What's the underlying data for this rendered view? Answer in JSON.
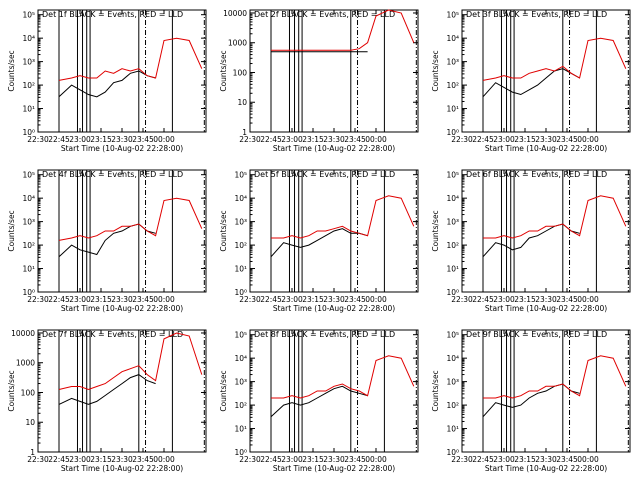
{
  "figure": {
    "xaxis_title": "Start Time (10-Aug-02 22:28:00)",
    "ylabel": "Counts/sec",
    "series_labels": [
      "BLACK = Events",
      "RED = LLD"
    ]
  },
  "chart_data": [
    {
      "type": "line",
      "title": "Det 1f BLACK = Events, RED = LLD",
      "x_ticks": [
        "22:30",
        "22:45",
        "23:00",
        "23:15",
        "23:30",
        "23:45",
        "00:00"
      ],
      "y_ticks": [
        "10⁰",
        "10¹",
        "10²",
        "10³",
        "10⁴",
        "10⁵"
      ],
      "ylim_log10": [
        0,
        5.2
      ],
      "x": [
        22.75,
        22.9,
        23.0,
        23.1,
        23.2,
        23.3,
        23.4,
        23.5,
        23.6,
        23.7,
        23.8,
        23.9,
        24.0,
        24.15,
        24.3,
        24.45
      ],
      "series": [
        {
          "label": "BLACK = Events",
          "color": "#000000",
          "log10_values": [
            1.5,
            2.0,
            1.8,
            1.6,
            1.5,
            1.7,
            2.1,
            2.2,
            2.5,
            2.6,
            2.4,
            2.3,
            null,
            null,
            null,
            null
          ]
        },
        {
          "label": "RED = LLD",
          "color": "#e00000",
          "log10_values": [
            2.2,
            2.3,
            2.4,
            2.3,
            2.3,
            2.6,
            2.5,
            2.7,
            2.6,
            2.7,
            2.4,
            2.3,
            3.9,
            4.0,
            3.9,
            2.7
          ]
        }
      ]
    },
    {
      "type": "line",
      "title": "Det 2f BLACK = Events, RED = LLD",
      "x_ticks": [
        "22:30",
        "22:45",
        "23:00",
        "23:15",
        "23:30",
        "23:45",
        "00:00"
      ],
      "y_ticks": [
        "1",
        "10",
        "100",
        "1000",
        "10000"
      ],
      "ylim_log10": [
        0,
        4.1
      ],
      "x": [
        22.75,
        22.9,
        23.0,
        23.1,
        23.2,
        23.3,
        23.4,
        23.5,
        23.6,
        23.7,
        23.8,
        23.9,
        24.0,
        24.15,
        24.3,
        24.45
      ],
      "series": [
        {
          "label": "BLACK = Events",
          "color": "#000000",
          "log10_values": [
            2.7,
            2.7,
            2.7,
            2.7,
            2.7,
            2.7,
            2.7,
            2.7,
            2.7,
            2.7,
            2.7,
            2.7,
            null,
            null,
            null,
            null
          ]
        },
        {
          "label": "RED = LLD",
          "color": "#e00000",
          "log10_values": [
            2.75,
            2.75,
            2.75,
            2.75,
            2.75,
            2.75,
            2.75,
            2.75,
            2.75,
            2.75,
            2.8,
            3.0,
            3.9,
            4.1,
            4.0,
            3.0
          ]
        }
      ]
    },
    {
      "type": "line",
      "title": "Det 3f BLACK = Events, RED = LLD",
      "x_ticks": [
        "22:30",
        "22:45",
        "23:00",
        "23:15",
        "23:30",
        "23:45",
        "00:00"
      ],
      "y_ticks": [
        "10⁰",
        "10¹",
        "10²",
        "10³",
        "10⁴",
        "10⁵"
      ],
      "ylim_log10": [
        0,
        5.2
      ],
      "x": [
        22.75,
        22.9,
        23.0,
        23.1,
        23.2,
        23.3,
        23.4,
        23.5,
        23.6,
        23.7,
        23.8,
        23.9,
        24.0,
        24.15,
        24.3,
        24.45
      ],
      "series": [
        {
          "label": "BLACK = Events",
          "color": "#000000",
          "log10_values": [
            1.5,
            2.1,
            1.9,
            1.7,
            1.6,
            1.8,
            2.0,
            2.3,
            2.6,
            2.7,
            2.5,
            2.3,
            null,
            null,
            null,
            null
          ]
        },
        {
          "label": "RED = LLD",
          "color": "#e00000",
          "log10_values": [
            2.2,
            2.3,
            2.4,
            2.3,
            2.3,
            2.5,
            2.6,
            2.7,
            2.6,
            2.8,
            2.5,
            2.3,
            3.9,
            4.0,
            3.9,
            2.7
          ]
        }
      ]
    },
    {
      "type": "line",
      "title": "Det 4f BLACK = Events, RED = LLD",
      "x_ticks": [
        "22:30",
        "22:45",
        "23:00",
        "23:15",
        "23:30",
        "23:45",
        "00:00"
      ],
      "y_ticks": [
        "10⁰",
        "10¹",
        "10²",
        "10³",
        "10⁴",
        "10⁵"
      ],
      "ylim_log10": [
        0,
        5.2
      ],
      "x": [
        22.75,
        22.9,
        23.0,
        23.1,
        23.2,
        23.3,
        23.4,
        23.5,
        23.6,
        23.7,
        23.8,
        23.9,
        24.0,
        24.15,
        24.3,
        24.45
      ],
      "series": [
        {
          "label": "BLACK = Events",
          "color": "#000000",
          "log10_values": [
            1.5,
            2.0,
            1.8,
            1.7,
            1.6,
            2.2,
            2.5,
            2.6,
            2.8,
            2.9,
            2.6,
            2.5,
            null,
            null,
            null,
            null
          ]
        },
        {
          "label": "RED = LLD",
          "color": "#e00000",
          "log10_values": [
            2.2,
            2.3,
            2.4,
            2.3,
            2.4,
            2.6,
            2.6,
            2.8,
            2.8,
            2.9,
            2.6,
            2.4,
            3.9,
            4.0,
            3.9,
            2.7
          ]
        }
      ]
    },
    {
      "type": "line",
      "title": "Det 5f BLACK = Events, RED = LLD",
      "x_ticks": [
        "22:30",
        "22:45",
        "23:00",
        "23:15",
        "23:30",
        "23:45",
        "00:00"
      ],
      "y_ticks": [
        "10⁰",
        "10¹",
        "10²",
        "10³",
        "10⁴",
        "10⁵"
      ],
      "ylim_log10": [
        0,
        5.2
      ],
      "x": [
        22.75,
        22.9,
        23.0,
        23.1,
        23.2,
        23.3,
        23.4,
        23.5,
        23.6,
        23.7,
        23.8,
        23.9,
        24.0,
        24.15,
        24.3,
        24.45
      ],
      "series": [
        {
          "label": "BLACK = Events",
          "color": "#000000",
          "log10_values": [
            1.5,
            2.1,
            2.0,
            1.9,
            2.0,
            2.2,
            2.4,
            2.6,
            2.7,
            2.5,
            2.5,
            2.4,
            null,
            null,
            null,
            null
          ]
        },
        {
          "label": "RED = LLD",
          "color": "#e00000",
          "log10_values": [
            2.3,
            2.3,
            2.4,
            2.3,
            2.4,
            2.6,
            2.6,
            2.7,
            2.8,
            2.6,
            2.5,
            2.4,
            3.9,
            4.1,
            4.0,
            2.8
          ]
        }
      ]
    },
    {
      "type": "line",
      "title": "Det 6f BLACK = Events, RED = LLD",
      "x_ticks": [
        "22:30",
        "22:45",
        "23:00",
        "23:15",
        "23:30",
        "23:45",
        "00:00"
      ],
      "y_ticks": [
        "10⁰",
        "10¹",
        "10²",
        "10³",
        "10⁴",
        "10⁵"
      ],
      "ylim_log10": [
        0,
        5.2
      ],
      "x": [
        22.75,
        22.9,
        23.0,
        23.1,
        23.2,
        23.3,
        23.4,
        23.5,
        23.6,
        23.7,
        23.8,
        23.9,
        24.0,
        24.15,
        24.3,
        24.45
      ],
      "series": [
        {
          "label": "BLACK = Events",
          "color": "#000000",
          "log10_values": [
            1.5,
            2.1,
            2.0,
            1.8,
            1.9,
            2.3,
            2.4,
            2.6,
            2.8,
            2.9,
            2.6,
            2.5,
            null,
            null,
            null,
            null
          ]
        },
        {
          "label": "RED = LLD",
          "color": "#e00000",
          "log10_values": [
            2.3,
            2.3,
            2.4,
            2.3,
            2.4,
            2.6,
            2.6,
            2.8,
            2.8,
            2.9,
            2.6,
            2.4,
            3.9,
            4.1,
            4.0,
            2.8
          ]
        }
      ]
    },
    {
      "type": "line",
      "title": "Det 7f BLACK = Events, RED = LLD",
      "x_ticks": [
        "22:30",
        "22:45",
        "23:00",
        "23:15",
        "23:30",
        "23:45",
        "00:00"
      ],
      "y_ticks": [
        "1",
        "10",
        "100",
        "1000",
        "10000"
      ],
      "ylim_log10": [
        0,
        4.1
      ],
      "x": [
        22.75,
        22.9,
        23.0,
        23.1,
        23.2,
        23.3,
        23.4,
        23.5,
        23.6,
        23.7,
        23.8,
        23.9,
        24.0,
        24.15,
        24.3,
        24.45
      ],
      "series": [
        {
          "label": "BLACK = Events",
          "color": "#000000",
          "log10_values": [
            1.6,
            1.8,
            1.7,
            1.6,
            1.7,
            1.9,
            2.1,
            2.3,
            2.5,
            2.6,
            2.4,
            2.3,
            null,
            null,
            null,
            null
          ]
        },
        {
          "label": "RED = LLD",
          "color": "#e00000",
          "log10_values": [
            2.1,
            2.2,
            2.2,
            2.1,
            2.2,
            2.3,
            2.5,
            2.7,
            2.8,
            2.9,
            2.6,
            2.4,
            3.8,
            4.0,
            3.9,
            2.6
          ]
        }
      ]
    },
    {
      "type": "line",
      "title": "Det 8f BLACK = Events, RED = LLD",
      "x_ticks": [
        "22:30",
        "22:45",
        "23:00",
        "23:15",
        "23:30",
        "23:45",
        "00:00"
      ],
      "y_ticks": [
        "10⁰",
        "10¹",
        "10²",
        "10³",
        "10⁴",
        "10⁵"
      ],
      "ylim_log10": [
        0,
        5.2
      ],
      "x": [
        22.75,
        22.9,
        23.0,
        23.1,
        23.2,
        23.3,
        23.4,
        23.5,
        23.6,
        23.7,
        23.8,
        23.9,
        24.0,
        24.15,
        24.3,
        24.45
      ],
      "series": [
        {
          "label": "BLACK = Events",
          "color": "#000000",
          "log10_values": [
            1.5,
            2.0,
            2.1,
            2.0,
            2.1,
            2.3,
            2.5,
            2.7,
            2.8,
            2.6,
            2.5,
            2.4,
            null,
            null,
            null,
            null
          ]
        },
        {
          "label": "RED = LLD",
          "color": "#e00000",
          "log10_values": [
            2.3,
            2.3,
            2.4,
            2.3,
            2.4,
            2.6,
            2.6,
            2.8,
            2.9,
            2.7,
            2.6,
            2.4,
            3.9,
            4.1,
            4.0,
            2.8
          ]
        }
      ]
    },
    {
      "type": "line",
      "title": "Det 9f BLACK = Events, RED = LLD",
      "x_ticks": [
        "22:30",
        "22:45",
        "23:00",
        "23:15",
        "23:30",
        "23:45",
        "00:00"
      ],
      "y_ticks": [
        "10⁰",
        "10¹",
        "10²",
        "10³",
        "10⁴",
        "10⁵"
      ],
      "ylim_log10": [
        0,
        5.2
      ],
      "x": [
        22.75,
        22.9,
        23.0,
        23.1,
        23.2,
        23.3,
        23.4,
        23.5,
        23.6,
        23.7,
        23.8,
        23.9,
        24.0,
        24.15,
        24.3,
        24.45
      ],
      "series": [
        {
          "label": "BLACK = Events",
          "color": "#000000",
          "log10_values": [
            1.5,
            2.1,
            2.0,
            1.9,
            2.0,
            2.3,
            2.5,
            2.6,
            2.8,
            2.9,
            2.6,
            2.5,
            null,
            null,
            null,
            null
          ]
        },
        {
          "label": "RED = LLD",
          "color": "#e00000",
          "log10_values": [
            2.3,
            2.3,
            2.4,
            2.3,
            2.4,
            2.6,
            2.6,
            2.8,
            2.8,
            2.9,
            2.6,
            2.4,
            3.9,
            4.1,
            4.0,
            2.8
          ]
        }
      ]
    }
  ]
}
